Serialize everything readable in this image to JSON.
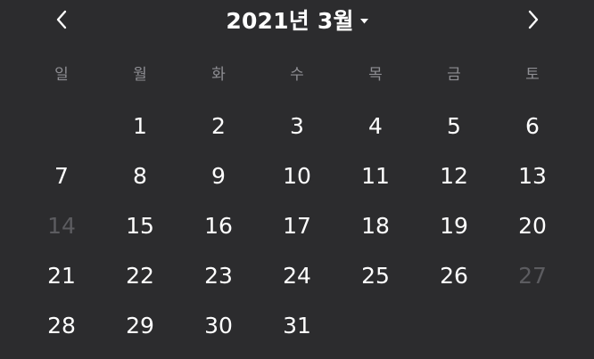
{
  "header": {
    "title": "2021년 3월",
    "prev_icon": "chevron-left-icon",
    "next_icon": "chevron-right-icon",
    "dropdown_icon": "caret-down-icon"
  },
  "colors": {
    "background": "#2c2c2e",
    "text": "#ffffff",
    "weekday": "#8e8e93",
    "disabled": "#5c5c60"
  },
  "weekdays": [
    "일",
    "월",
    "화",
    "수",
    "목",
    "금",
    "토"
  ],
  "calendar": {
    "leading_empty": 1,
    "days": [
      {
        "label": "1",
        "disabled": false
      },
      {
        "label": "2",
        "disabled": false
      },
      {
        "label": "3",
        "disabled": false
      },
      {
        "label": "4",
        "disabled": false
      },
      {
        "label": "5",
        "disabled": false
      },
      {
        "label": "6",
        "disabled": false
      },
      {
        "label": "7",
        "disabled": false
      },
      {
        "label": "8",
        "disabled": false
      },
      {
        "label": "9",
        "disabled": false
      },
      {
        "label": "10",
        "disabled": false
      },
      {
        "label": "11",
        "disabled": false
      },
      {
        "label": "12",
        "disabled": false
      },
      {
        "label": "13",
        "disabled": false
      },
      {
        "label": "14",
        "disabled": true
      },
      {
        "label": "15",
        "disabled": false
      },
      {
        "label": "16",
        "disabled": false
      },
      {
        "label": "17",
        "disabled": false
      },
      {
        "label": "18",
        "disabled": false
      },
      {
        "label": "19",
        "disabled": false
      },
      {
        "label": "20",
        "disabled": false
      },
      {
        "label": "21",
        "disabled": false
      },
      {
        "label": "22",
        "disabled": false
      },
      {
        "label": "23",
        "disabled": false
      },
      {
        "label": "24",
        "disabled": false
      },
      {
        "label": "25",
        "disabled": false
      },
      {
        "label": "26",
        "disabled": false
      },
      {
        "label": "27",
        "disabled": true
      },
      {
        "label": "28",
        "disabled": false
      },
      {
        "label": "29",
        "disabled": false
      },
      {
        "label": "30",
        "disabled": false
      },
      {
        "label": "31",
        "disabled": false
      }
    ]
  }
}
